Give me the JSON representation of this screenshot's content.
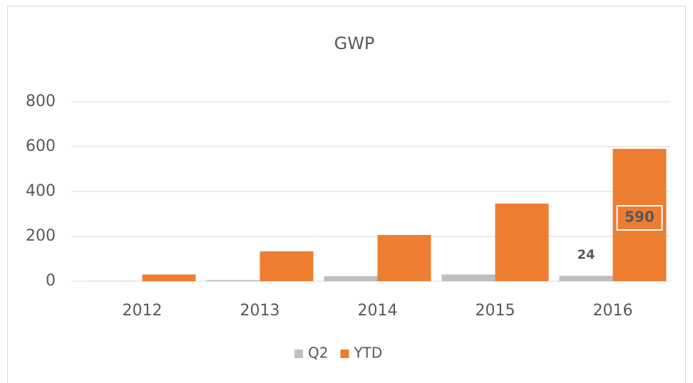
{
  "chart_data": {
    "type": "bar",
    "title": "GWP",
    "categories": [
      "2012",
      "2013",
      "2014",
      "2015",
      "2016"
    ],
    "series": [
      {
        "name": "Q2",
        "color": "#bfbfbf",
        "values": [
          1,
          5,
          22,
          30,
          24
        ],
        "value_labels": [
          null,
          null,
          null,
          null,
          "24"
        ]
      },
      {
        "name": "YTD",
        "color": "#ed7d31",
        "values": [
          30,
          133,
          206,
          346,
          590
        ],
        "value_labels": [
          null,
          null,
          null,
          null,
          "590"
        ]
      }
    ],
    "ylim": [
      0,
      800
    ],
    "yticks": [
      0,
      200,
      400,
      600,
      800
    ],
    "grid": true,
    "legend": "bottom"
  }
}
